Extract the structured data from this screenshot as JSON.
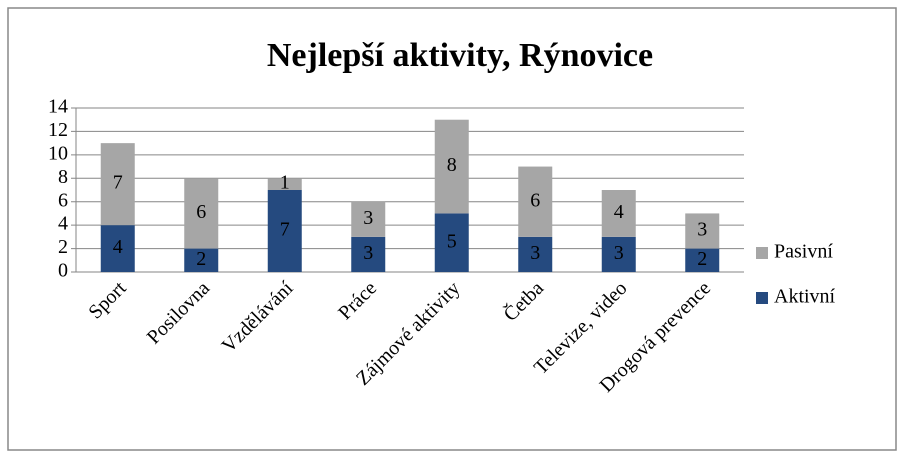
{
  "chart_data": {
    "type": "stacked_bar",
    "title": "Nejlepší aktivity, Rýnovice",
    "categories": [
      "Sport",
      "Posilovna",
      "Vzdělávání",
      "Práce",
      "Zájmové aktivity",
      "Četba",
      "Televize, video",
      "Drogová prevence"
    ],
    "series": [
      {
        "name": "Aktivní",
        "color": "#254a7f",
        "values": [
          4,
          2,
          7,
          3,
          5,
          3,
          3,
          2
        ]
      },
      {
        "name": "Pasivní",
        "color": "#a6a6a6",
        "values": [
          7,
          6,
          1,
          3,
          8,
          6,
          4,
          3
        ]
      }
    ],
    "ylim": [
      0,
      14
    ],
    "yticks": [
      0,
      2,
      4,
      6,
      8,
      10,
      12,
      14
    ],
    "grid": true,
    "legend": "right"
  }
}
